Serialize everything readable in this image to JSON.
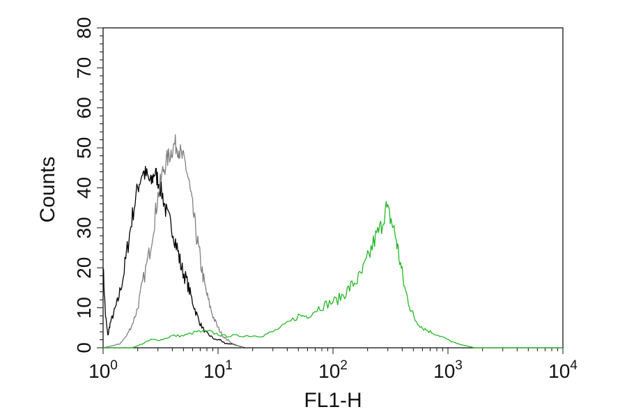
{
  "chart_data": {
    "type": "line",
    "title": "",
    "xlabel": "FL1-H",
    "ylabel": "Counts",
    "x_scale": "log",
    "xlim": [
      1,
      10000
    ],
    "ylim": [
      0,
      80
    ],
    "x_ticks": [
      {
        "value": 1,
        "base": "10",
        "exp": "0"
      },
      {
        "value": 10,
        "base": "10",
        "exp": "1"
      },
      {
        "value": 100,
        "base": "10",
        "exp": "2"
      },
      {
        "value": 1000,
        "base": "10",
        "exp": "3"
      },
      {
        "value": 10000,
        "base": "10",
        "exp": "4"
      }
    ],
    "y_ticks": [
      "0",
      "10",
      "20",
      "30",
      "40",
      "50",
      "60",
      "70",
      "80"
    ],
    "grid": false,
    "legend": "none",
    "series": [
      {
        "color": "#000000",
        "x": [
          1.0,
          1.05,
          1.1,
          1.15,
          1.25,
          1.35,
          1.5,
          1.65,
          1.8,
          2.0,
          2.2,
          2.4,
          2.6,
          2.8,
          3.0,
          3.3,
          3.6,
          4.0,
          4.4,
          4.8,
          5.3,
          5.8,
          6.4,
          7.0,
          7.7,
          8.5,
          9.5,
          10.5,
          11.5,
          13.0,
          15.0,
          17.0
        ],
        "y": [
          20,
          8,
          3,
          6,
          9,
          12,
          18,
          26,
          33,
          40,
          44,
          43,
          41,
          44,
          42,
          38,
          33,
          30,
          25,
          20,
          17,
          13,
          9,
          6,
          4,
          3,
          2,
          2,
          1,
          1,
          0.5,
          0
        ]
      },
      {
        "color": "#808080",
        "x": [
          1.0,
          1.2,
          1.4,
          1.6,
          1.8,
          2.0,
          2.2,
          2.5,
          2.8,
          3.0,
          3.3,
          3.6,
          3.9,
          4.2,
          4.5,
          4.8,
          5.2,
          5.6,
          6.0,
          6.5,
          7.0,
          7.6,
          8.2,
          9.0,
          10.0,
          11.0,
          12.0,
          13.5,
          15.0,
          16.5
        ],
        "y": [
          0,
          0.5,
          1,
          3,
          6,
          10,
          16,
          23,
          32,
          38,
          44,
          47,
          49,
          51,
          50,
          48,
          46,
          41,
          35,
          28,
          22,
          16,
          12,
          8,
          5,
          3,
          2,
          1,
          0.5,
          0
        ]
      },
      {
        "color": "#22b822",
        "x": [
          1.0,
          1.8,
          2.2,
          2.6,
          3.2,
          4.0,
          5.0,
          6.5,
          8.5,
          11,
          14,
          18,
          24,
          30,
          40,
          50,
          60,
          75,
          90,
          110,
          130,
          150,
          175,
          200,
          230,
          260,
          290,
          320,
          350,
          380,
          420,
          470,
          520,
          600,
          700,
          850,
          1000,
          1200,
          1450,
          1700,
          2000,
          5000,
          10000
        ],
        "y": [
          0,
          0,
          1,
          2,
          2,
          3,
          3,
          4,
          4,
          3,
          3,
          3,
          3,
          4,
          6,
          8,
          8,
          10,
          11,
          12,
          14,
          16,
          18,
          22,
          27,
          30,
          35,
          32,
          28,
          22,
          15,
          10,
          7,
          5,
          4,
          3,
          2,
          1,
          0.5,
          0,
          0,
          0,
          0
        ]
      }
    ]
  }
}
